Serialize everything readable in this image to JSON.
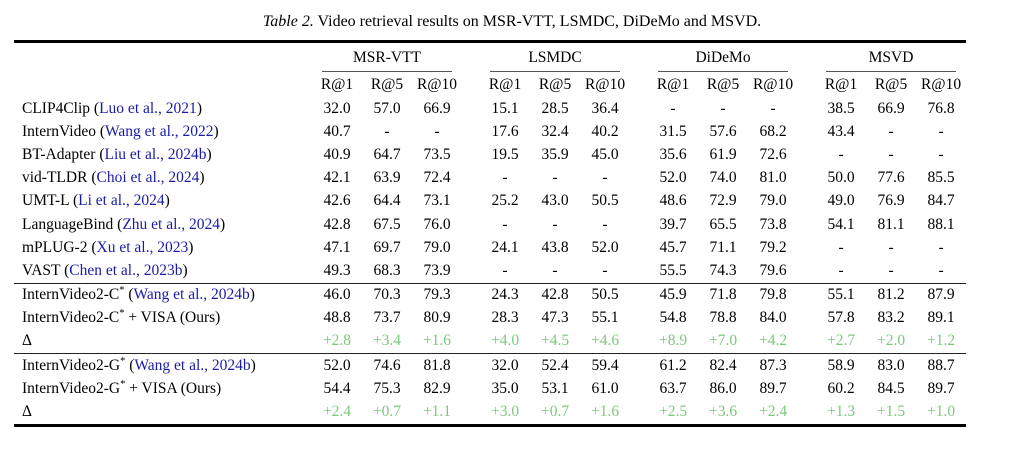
{
  "caption": {
    "label": "Table 2.",
    "text": " Video retrieval results on MSR-VTT, LSMDC, DiDeMo and MSVD."
  },
  "colors": {
    "citation_blue": "#1b1ba8",
    "delta_green": "#7cc87c"
  },
  "table": {
    "punct": {
      "open": " (",
      "close": ")"
    },
    "groups": [
      "MSR-VTT",
      "LSMDC",
      "DiDeMo",
      "MSVD"
    ],
    "metrics": [
      "R@1",
      "R@5",
      "R@10"
    ],
    "rows": [
      {
        "name": "CLIP4Clip",
        "sup": "",
        "suffix": "",
        "cite": "Luo et al., 2021",
        "delta": false,
        "section": 0,
        "values": [
          "32.0",
          "57.0",
          "66.9",
          "15.1",
          "28.5",
          "36.4",
          "-",
          "-",
          "-",
          "38.5",
          "66.9",
          "76.8"
        ]
      },
      {
        "name": "InternVideo",
        "sup": "",
        "suffix": "",
        "cite": "Wang et al., 2022",
        "delta": false,
        "section": 0,
        "values": [
          "40.7",
          "-",
          "-",
          "17.6",
          "32.4",
          "40.2",
          "31.5",
          "57.6",
          "68.2",
          "43.4",
          "-",
          "-"
        ]
      },
      {
        "name": "BT-Adapter",
        "sup": "",
        "suffix": "",
        "cite": "Liu et al., 2024b",
        "delta": false,
        "section": 0,
        "values": [
          "40.9",
          "64.7",
          "73.5",
          "19.5",
          "35.9",
          "45.0",
          "35.6",
          "61.9",
          "72.6",
          "-",
          "-",
          "-"
        ]
      },
      {
        "name": "vid-TLDR",
        "sup": "",
        "suffix": "",
        "cite": "Choi et al., 2024",
        "delta": false,
        "section": 0,
        "values": [
          "42.1",
          "63.9",
          "72.4",
          "-",
          "-",
          "-",
          "52.0",
          "74.0",
          "81.0",
          "50.0",
          "77.6",
          "85.5"
        ]
      },
      {
        "name": "UMT-L",
        "sup": "",
        "suffix": "",
        "cite": "Li et al., 2024",
        "delta": false,
        "section": 0,
        "values": [
          "42.6",
          "64.4",
          "73.1",
          "25.2",
          "43.0",
          "50.5",
          "48.6",
          "72.9",
          "79.0",
          "49.0",
          "76.9",
          "84.7"
        ]
      },
      {
        "name": "LanguageBind",
        "sup": "",
        "suffix": "",
        "cite": "Zhu et al., 2024",
        "delta": false,
        "section": 0,
        "values": [
          "42.8",
          "67.5",
          "76.0",
          "-",
          "-",
          "-",
          "39.7",
          "65.5",
          "73.8",
          "54.1",
          "81.1",
          "88.1"
        ]
      },
      {
        "name": "mPLUG-2",
        "sup": "",
        "suffix": "",
        "cite": "Xu et al., 2023",
        "delta": false,
        "section": 0,
        "values": [
          "47.1",
          "69.7",
          "79.0",
          "24.1",
          "43.8",
          "52.0",
          "45.7",
          "71.1",
          "79.2",
          "-",
          "-",
          "-"
        ]
      },
      {
        "name": "VAST",
        "sup": "",
        "suffix": "",
        "cite": "Chen et al., 2023b",
        "delta": false,
        "section": 0,
        "values": [
          "49.3",
          "68.3",
          "73.9",
          "-",
          "-",
          "-",
          "55.5",
          "74.3",
          "79.6",
          "-",
          "-",
          "-"
        ]
      },
      {
        "name": "InternVideo2-C",
        "sup": "*",
        "suffix": "",
        "cite": "Wang et al., 2024b",
        "delta": false,
        "section": 1,
        "values": [
          "46.0",
          "70.3",
          "79.3",
          "24.3",
          "42.8",
          "50.5",
          "45.9",
          "71.8",
          "79.8",
          "55.1",
          "81.2",
          "87.9"
        ]
      },
      {
        "name": "InternVideo2-C",
        "sup": "*",
        "suffix": " + VISA (Ours)",
        "cite": "",
        "delta": false,
        "section": 1,
        "values": [
          "48.8",
          "73.7",
          "80.9",
          "28.3",
          "47.3",
          "55.1",
          "54.8",
          "78.8",
          "84.0",
          "57.8",
          "83.2",
          "89.1"
        ]
      },
      {
        "name": "Δ",
        "sup": "",
        "suffix": "",
        "cite": "",
        "delta": true,
        "section": 1,
        "values": [
          "+2.8",
          "+3.4",
          "+1.6",
          "+4.0",
          "+4.5",
          "+4.6",
          "+8.9",
          "+7.0",
          "+4.2",
          "+2.7",
          "+2.0",
          "+1.2"
        ]
      },
      {
        "name": "InternVideo2-G",
        "sup": "*",
        "suffix": "",
        "cite": "Wang et al., 2024b",
        "delta": false,
        "section": 2,
        "values": [
          "52.0",
          "74.6",
          "81.8",
          "32.0",
          "52.4",
          "59.4",
          "61.2",
          "82.4",
          "87.3",
          "58.9",
          "83.0",
          "88.7"
        ]
      },
      {
        "name": "InternVideo2-G",
        "sup": "*",
        "suffix": " + VISA (Ours)",
        "cite": "",
        "delta": false,
        "section": 2,
        "values": [
          "54.4",
          "75.3",
          "82.9",
          "35.0",
          "53.1",
          "61.0",
          "63.7",
          "86.0",
          "89.7",
          "60.2",
          "84.5",
          "89.7"
        ]
      },
      {
        "name": "Δ",
        "sup": "",
        "suffix": "",
        "cite": "",
        "delta": true,
        "section": 2,
        "values": [
          "+2.4",
          "+0.7",
          "+1.1",
          "+3.0",
          "+0.7",
          "+1.6",
          "+2.5",
          "+3.6",
          "+2.4",
          "+1.3",
          "+1.5",
          "+1.0"
        ]
      }
    ]
  }
}
